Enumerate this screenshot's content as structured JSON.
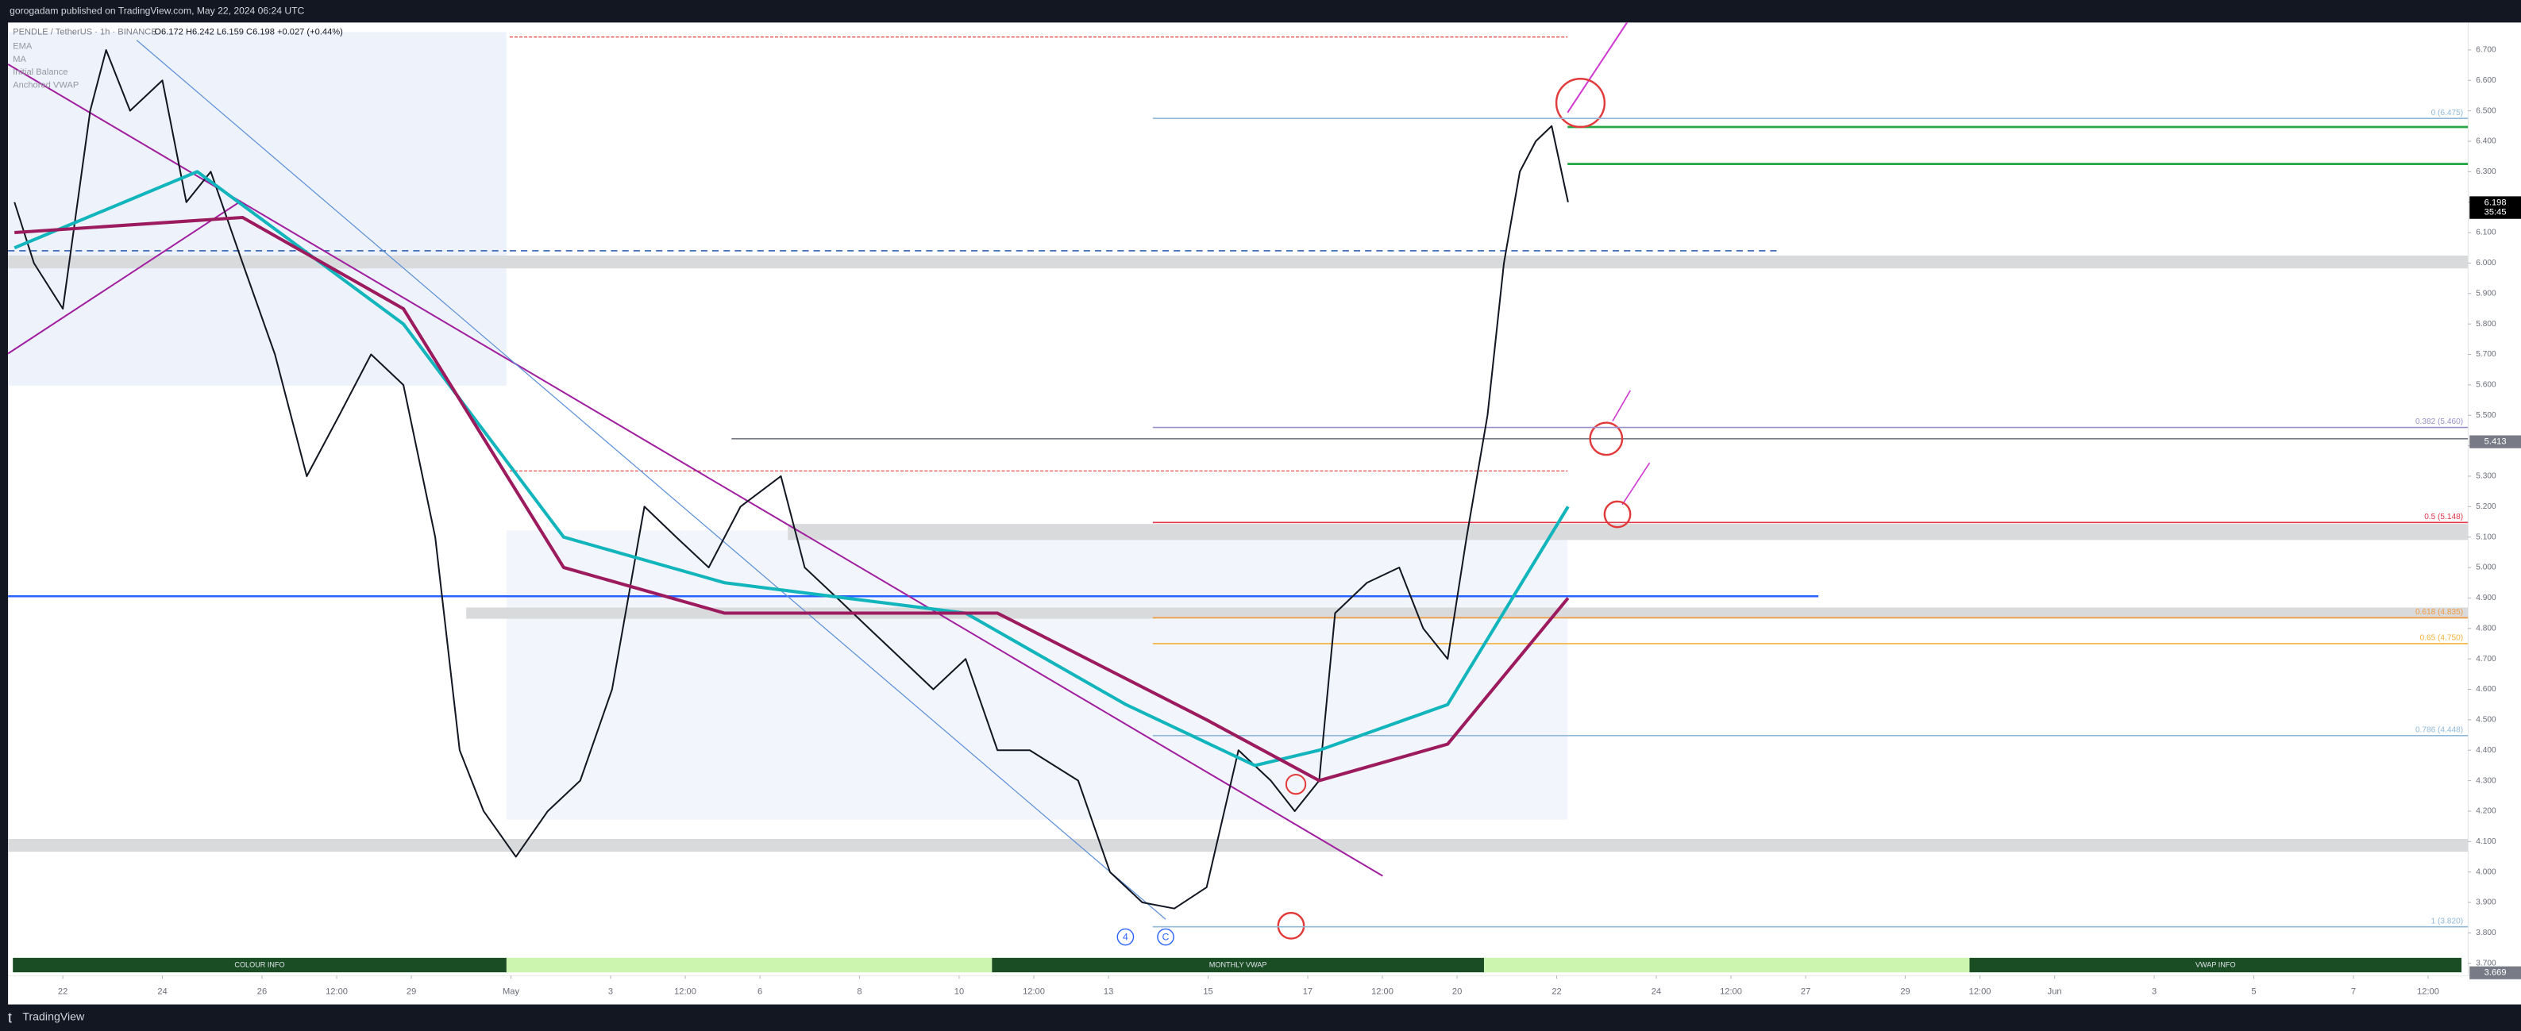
{
  "header": {
    "publisher": "gorogadam published on TradingView.com, May 22, 2024 06:24 UTC",
    "symbol": "PENDLE / TetherUS · 1h · BINANCE",
    "ohlc": "O6.172 H6.242 L6.159 C6.198 +0.027 (+0.44%)"
  },
  "footer": {
    "brand": "TradingView"
  },
  "chart_data": {
    "type": "line",
    "xlim": [
      20.9,
      70.3
    ],
    "xticks": [
      22,
      24,
      26,
      {
        "value": 27.5,
        "label": "12:00"
      },
      29,
      {
        "value": 31,
        "label": "May"
      },
      {
        "value": 33,
        "label": "3"
      },
      {
        "value": 34.5,
        "label": "12:00"
      },
      {
        "value": 36,
        "label": "6"
      },
      {
        "value": 38,
        "label": "8"
      },
      {
        "value": 40,
        "label": "10"
      },
      {
        "value": 41.5,
        "label": "12:00"
      },
      {
        "value": 43,
        "label": "13"
      },
      {
        "value": 45,
        "label": "15"
      },
      {
        "value": 47,
        "label": "17"
      },
      {
        "value": 48.5,
        "label": "12:00"
      },
      {
        "value": 50,
        "label": "20"
      },
      {
        "value": 52,
        "label": "22"
      },
      {
        "value": 54,
        "label": "24"
      },
      {
        "value": 55.5,
        "label": "12:00"
      },
      {
        "value": 57,
        "label": "27"
      },
      {
        "value": 59,
        "label": "29"
      },
      {
        "value": 60.5,
        "label": "12:00"
      },
      {
        "value": 62,
        "label": "Jun"
      },
      {
        "value": 64,
        "label": "3"
      },
      {
        "value": 66,
        "label": "5"
      },
      {
        "value": 68,
        "label": "7"
      },
      {
        "value": 69.5,
        "label": "12:00"
      }
    ],
    "ylim": [
      3.66,
      6.79
    ],
    "yticks": [
      {
        "value": 3.7,
        "label": "3.700"
      },
      {
        "value": 3.8,
        "label": "3.800"
      },
      {
        "value": 3.9,
        "label": "3.900"
      },
      {
        "value": 4.0,
        "label": "4.000"
      },
      {
        "value": 4.1,
        "label": "4.100"
      },
      {
        "value": 4.2,
        "label": "4.200"
      },
      {
        "value": 4.3,
        "label": "4.300"
      },
      {
        "value": 4.4,
        "label": "4.400"
      },
      {
        "value": 4.5,
        "label": "4.500"
      },
      {
        "value": 4.6,
        "label": "4.600"
      },
      {
        "value": 4.7,
        "label": "4.700"
      },
      {
        "value": 4.8,
        "label": "4.800"
      },
      {
        "value": 4.9,
        "label": "4.900"
      },
      {
        "value": 5.0,
        "label": "5.000"
      },
      {
        "value": 5.1,
        "label": "5.100"
      },
      {
        "value": 5.2,
        "label": "5.200"
      },
      {
        "value": 5.3,
        "label": "5.300"
      },
      {
        "value": 5.4,
        "label": "5.400"
      },
      {
        "value": 5.5,
        "label": "5.500"
      },
      {
        "value": 5.6,
        "label": "5.600"
      },
      {
        "value": 5.7,
        "label": "5.700"
      },
      {
        "value": 5.8,
        "label": "5.800"
      },
      {
        "value": 5.9,
        "label": "5.900"
      },
      {
        "value": 6.0,
        "label": "6.000"
      },
      {
        "value": 6.1,
        "label": "6.100"
      },
      {
        "value": 6.2,
        "label": "6.200"
      },
      {
        "value": 6.3,
        "label": "6.300"
      },
      {
        "value": 6.4,
        "label": "6.400"
      },
      {
        "value": 6.5,
        "label": "6.500"
      },
      {
        "value": 6.6,
        "label": "6.600"
      },
      {
        "value": 6.7,
        "label": "6.700"
      }
    ],
    "series": [
      {
        "color": "#131722",
        "width": 1,
        "x": [
          21.03,
          21.42,
          22.0,
          22.55,
          22.87,
          23.35,
          24.0,
          24.48,
          24.97,
          25.61,
          26.26,
          26.9,
          27.55,
          28.19,
          28.84,
          29.48,
          29.97,
          30.45,
          31.1,
          31.74,
          32.39,
          33.03,
          33.68,
          34.32,
          34.97,
          35.61,
          36.42,
          36.9,
          37.55,
          38.19,
          38.84,
          39.48,
          40.13,
          40.77,
          41.42,
          42.39,
          43.03,
          43.68,
          44.32,
          44.97,
          45.61,
          46.26,
          46.74,
          47.23,
          47.55,
          48.19,
          48.84,
          49.32,
          49.81,
          50.19,
          50.61,
          50.94,
          51.26,
          51.58,
          51.9,
          52.23
        ],
        "values": [
          6.2,
          6.0,
          5.85,
          6.5,
          6.7,
          6.5,
          6.6,
          6.2,
          6.3,
          6.0,
          5.7,
          5.3,
          5.5,
          5.7,
          5.6,
          5.1,
          4.4,
          4.2,
          4.05,
          4.2,
          4.3,
          4.6,
          5.2,
          5.1,
          5.0,
          5.2,
          5.3,
          5.0,
          4.9,
          4.8,
          4.7,
          4.6,
          4.7,
          4.4,
          4.4,
          4.3,
          4.0,
          3.9,
          3.88,
          3.95,
          4.4,
          4.3,
          4.2,
          4.3,
          4.85,
          4.95,
          5.0,
          4.8,
          4.7,
          5.1,
          5.5,
          6.0,
          6.3,
          6.4,
          6.45,
          6.2
        ]
      },
      {
        "name": "EMA",
        "color": "#13b5bd",
        "width": 2,
        "x": [
          21.03,
          24.7,
          28.84,
          32.06,
          35.29,
          40.13,
          43.35,
          45.94,
          47.23,
          49.81,
          52.23
        ],
        "values": [
          6.05,
          6.3,
          5.8,
          5.1,
          4.95,
          4.85,
          4.55,
          4.35,
          4.4,
          4.55,
          5.2
        ]
      },
      {
        "name": "MA",
        "color": "#9c1a5e",
        "width": 2,
        "x": [
          21.03,
          25.61,
          28.84,
          32.06,
          35.29,
          40.77,
          44.97,
          47.23,
          49.81,
          52.23
        ],
        "values": [
          6.1,
          6.15,
          5.85,
          5.0,
          4.85,
          4.85,
          4.5,
          4.3,
          4.42,
          4.9
        ]
      }
    ],
    "legend_extra": [
      "Initial Balance",
      "Anchored VWAP"
    ],
    "levels": [
      {
        "value": 6.475,
        "label": "0 (6.475)",
        "color": "#90b8d8"
      },
      {
        "value": 5.46,
        "label": "0.382 (5.460)",
        "color": "#9a8fc8"
      },
      {
        "value": 5.148,
        "label": "0.5 (5.148)",
        "color": "#e0364a"
      },
      {
        "value": 4.835,
        "label": "0.618 (4.835)",
        "color": "#f39a3c"
      },
      {
        "value": 4.75,
        "label": "0.65 (4.750)",
        "color": "#f3b23c"
      },
      {
        "value": 4.448,
        "label": "0.786 (4.448)",
        "color": "#90b8d8"
      },
      {
        "value": 3.82,
        "label": "1 (3.820)",
        "color": "#90b8d8"
      }
    ],
    "price_labels": [
      {
        "value": 6.198,
        "label": "6.198",
        "sub": "35:45",
        "color": "#000000"
      },
      {
        "value": 5.413,
        "label": "5.413",
        "color": "#787b86"
      },
      {
        "value": 3.669,
        "label": "3.669",
        "color": "#787b86"
      }
    ],
    "annotations": [
      "4",
      "C"
    ],
    "info_bars": [
      "COLOUR INFO",
      "MONTHLY VWAP",
      "VWAP INFO"
    ]
  }
}
